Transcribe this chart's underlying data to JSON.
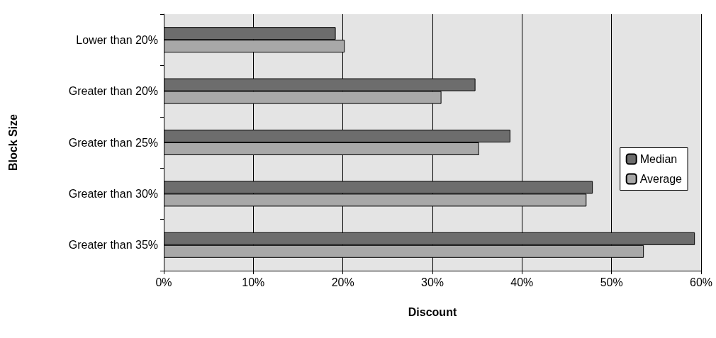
{
  "chart_data": {
    "type": "bar",
    "orientation": "horizontal",
    "xlabel": "Discount",
    "ylabel": "Block Size",
    "categories": [
      "Lower than 20%",
      "Greater than 20%",
      "Greater than 25%",
      "Greater than 30%",
      "Greater than 35%"
    ],
    "series": [
      {
        "name": "Median",
        "color": "#6d6d6d",
        "values": [
          19.2,
          34.8,
          38.7,
          47.9,
          59.3
        ]
      },
      {
        "name": "Average",
        "color": "#a8a8a8",
        "values": [
          20.2,
          31.0,
          35.2,
          47.2,
          53.6
        ]
      }
    ],
    "xlim": [
      0,
      60
    ],
    "xticks": [
      {
        "value": 0,
        "label": "0%"
      },
      {
        "value": 10,
        "label": "10%"
      },
      {
        "value": 20,
        "label": "20%"
      },
      {
        "value": 30,
        "label": "30%"
      },
      {
        "value": 40,
        "label": "40%"
      },
      {
        "value": 50,
        "label": "50%"
      },
      {
        "value": 60,
        "label": "60%"
      }
    ],
    "grid": "x",
    "legend": "right"
  }
}
